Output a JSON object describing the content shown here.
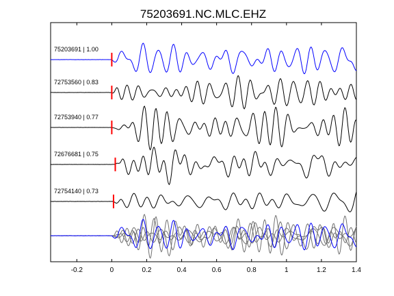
{
  "chart_data": {
    "type": "line",
    "title": "75203691.NC.MLC.EHZ",
    "xlabel": "",
    "ylabel": "",
    "xlim": [
      -0.35,
      1.4
    ],
    "x_ticks": [
      -0.2,
      0,
      0.2,
      0.4,
      0.6,
      0.8,
      1,
      1.2,
      1.4
    ],
    "x_tick_labels": [
      "-0.2",
      "0",
      "0.2",
      "0.4",
      "0.6",
      "0.8",
      "1",
      "1.2",
      "1.4"
    ],
    "grid": false,
    "legend": "none",
    "traces": [
      {
        "label": "75203691 | 1.00",
        "color": "#0000ff",
        "pick_time": 0.0,
        "amplitude": 1.0,
        "seed": 11
      },
      {
        "label": "72753560 | 0.83",
        "color": "#000000",
        "pick_time": 0.0,
        "amplitude": 0.85,
        "seed": 23
      },
      {
        "label": "72753940 | 0.77",
        "color": "#000000",
        "pick_time": 0.0,
        "amplitude": 0.95,
        "seed": 37
      },
      {
        "label": "72676681 | 0.75",
        "color": "#000000",
        "pick_time": 0.02,
        "amplitude": 0.9,
        "seed": 51
      },
      {
        "label": "72754140 | 0.73",
        "color": "#000000",
        "pick_time": 0.01,
        "amplitude": 0.85,
        "seed": 67
      }
    ],
    "stack": {
      "gray_color": "#707070",
      "master_color": "#0000ff"
    },
    "pick_color": "#ff0000"
  }
}
